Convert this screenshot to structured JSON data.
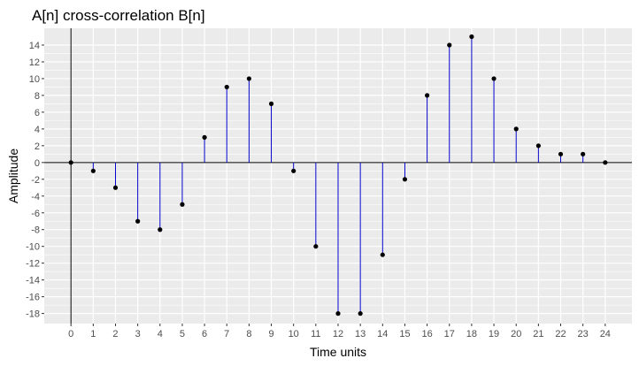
{
  "chart_data": {
    "type": "stem",
    "title": "A[n] cross-correlation B[n]",
    "xlabel": "Time units",
    "ylabel": "Amplitude",
    "x": [
      0,
      1,
      2,
      3,
      4,
      5,
      6,
      7,
      8,
      9,
      10,
      11,
      12,
      13,
      14,
      15,
      16,
      17,
      18,
      19,
      20,
      21,
      22,
      23,
      24
    ],
    "values": [
      0,
      -1,
      -3,
      -7,
      -8,
      -5,
      3,
      9,
      10,
      7,
      -1,
      -10,
      -18,
      -18,
      -11,
      -2,
      8,
      14,
      15,
      10,
      4,
      2,
      1,
      1,
      0
    ],
    "xticks": [
      0,
      1,
      2,
      3,
      4,
      5,
      6,
      7,
      8,
      9,
      10,
      11,
      12,
      13,
      14,
      15,
      16,
      17,
      18,
      19,
      20,
      21,
      22,
      23,
      24
    ],
    "yticks": [
      -18,
      -16,
      -14,
      -12,
      -10,
      -8,
      -6,
      -4,
      -2,
      0,
      2,
      4,
      6,
      8,
      10,
      12,
      14
    ],
    "xlim": [
      -1.2,
      25.2
    ],
    "ylim": [
      -19.2,
      16.0
    ],
    "grid": true,
    "reference_lines": [
      "x=0",
      "y=0"
    ],
    "colors": {
      "stem": "#0000cc",
      "marker": "#000000",
      "panel_background": "#ebebeb",
      "grid": "#ffffff",
      "reference": "#000000"
    }
  }
}
